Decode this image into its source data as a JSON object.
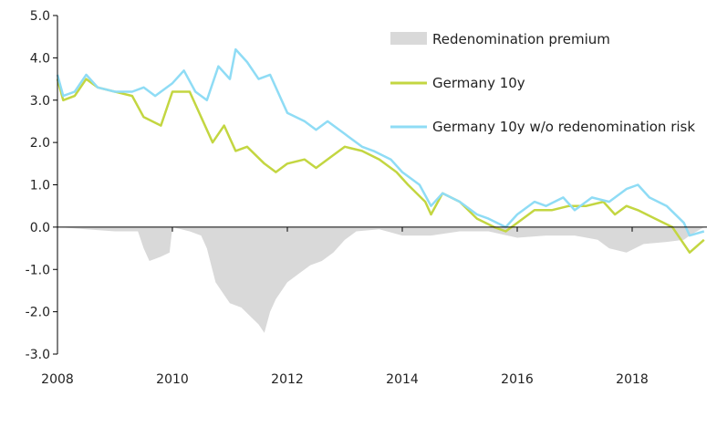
{
  "chart_data": {
    "type": "line",
    "title": "",
    "xlabel": "",
    "ylabel": "",
    "xlim": [
      2008,
      2019.3
    ],
    "ylim": [
      -3,
      5
    ],
    "x_ticks": [
      "2008",
      "2010",
      "2012",
      "2014",
      "2016",
      "2018"
    ],
    "y_ticks": [
      "5.0",
      "4.0",
      "3.0",
      "2.0",
      "1.0",
      "0.0",
      "-1.0",
      "-2.0",
      "-3.0"
    ],
    "grid": false,
    "legend_position": "top-right",
    "series": [
      {
        "name": "Redenomination premium",
        "kind": "area",
        "color": "#d9d9d9",
        "points": [
          [
            2008.0,
            0
          ],
          [
            2008.5,
            -0.05
          ],
          [
            2009.0,
            -0.1
          ],
          [
            2009.4,
            -0.1
          ],
          [
            2009.5,
            -0.5
          ],
          [
            2009.6,
            -0.8
          ],
          [
            2009.8,
            -0.7
          ],
          [
            2009.95,
            -0.6
          ],
          [
            2010.0,
            0
          ],
          [
            2010.3,
            -0.1
          ],
          [
            2010.5,
            -0.2
          ],
          [
            2010.6,
            -0.5
          ],
          [
            2010.75,
            -1.3
          ],
          [
            2010.9,
            -1.6
          ],
          [
            2011.0,
            -1.8
          ],
          [
            2011.2,
            -1.9
          ],
          [
            2011.35,
            -2.1
          ],
          [
            2011.5,
            -2.3
          ],
          [
            2011.6,
            -2.5
          ],
          [
            2011.7,
            -2.0
          ],
          [
            2011.8,
            -1.7
          ],
          [
            2012.0,
            -1.3
          ],
          [
            2012.2,
            -1.1
          ],
          [
            2012.4,
            -0.9
          ],
          [
            2012.6,
            -0.8
          ],
          [
            2012.8,
            -0.6
          ],
          [
            2013.0,
            -0.3
          ],
          [
            2013.2,
            -0.1
          ],
          [
            2013.6,
            -0.05
          ],
          [
            2014.0,
            -0.2
          ],
          [
            2014.5,
            -0.2
          ],
          [
            2015.0,
            -0.1
          ],
          [
            2015.5,
            -0.1
          ],
          [
            2016.0,
            -0.25
          ],
          [
            2016.5,
            -0.2
          ],
          [
            2017.0,
            -0.2
          ],
          [
            2017.4,
            -0.3
          ],
          [
            2017.6,
            -0.5
          ],
          [
            2017.9,
            -0.6
          ],
          [
            2018.2,
            -0.4
          ],
          [
            2018.6,
            -0.35
          ],
          [
            2018.9,
            -0.3
          ],
          [
            2019.0,
            -0.2
          ],
          [
            2019.25,
            0
          ]
        ]
      },
      {
        "name": "Germany 10y",
        "kind": "line",
        "color": "#c3d641",
        "points": [
          [
            2008.0,
            3.5
          ],
          [
            2008.1,
            3.0
          ],
          [
            2008.3,
            3.1
          ],
          [
            2008.5,
            3.5
          ],
          [
            2008.7,
            3.3
          ],
          [
            2009.0,
            3.2
          ],
          [
            2009.3,
            3.1
          ],
          [
            2009.5,
            2.6
          ],
          [
            2009.8,
            2.4
          ],
          [
            2010.0,
            3.2
          ],
          [
            2010.3,
            3.2
          ],
          [
            2010.5,
            2.6
          ],
          [
            2010.7,
            2.0
          ],
          [
            2010.9,
            2.4
          ],
          [
            2011.1,
            1.8
          ],
          [
            2011.3,
            1.9
          ],
          [
            2011.6,
            1.5
          ],
          [
            2011.8,
            1.3
          ],
          [
            2012.0,
            1.5
          ],
          [
            2012.3,
            1.6
          ],
          [
            2012.5,
            1.4
          ],
          [
            2012.8,
            1.7
          ],
          [
            2013.0,
            1.9
          ],
          [
            2013.3,
            1.8
          ],
          [
            2013.6,
            1.6
          ],
          [
            2013.9,
            1.3
          ],
          [
            2014.1,
            1.0
          ],
          [
            2014.4,
            0.6
          ],
          [
            2014.5,
            0.3
          ],
          [
            2014.7,
            0.8
          ],
          [
            2015.0,
            0.6
          ],
          [
            2015.3,
            0.2
          ],
          [
            2015.6,
            0.0
          ],
          [
            2015.8,
            -0.1
          ],
          [
            2016.0,
            0.1
          ],
          [
            2016.3,
            0.4
          ],
          [
            2016.6,
            0.4
          ],
          [
            2016.9,
            0.5
          ],
          [
            2017.2,
            0.5
          ],
          [
            2017.5,
            0.6
          ],
          [
            2017.7,
            0.3
          ],
          [
            2017.9,
            0.5
          ],
          [
            2018.1,
            0.4
          ],
          [
            2018.4,
            0.2
          ],
          [
            2018.7,
            0.0
          ],
          [
            2018.9,
            -0.4
          ],
          [
            2019.0,
            -0.6
          ],
          [
            2019.25,
            -0.3
          ]
        ]
      },
      {
        "name": "Germany 10y w/o redenomination risk",
        "kind": "line",
        "color": "#8fdcf5",
        "points": [
          [
            2008.0,
            3.6
          ],
          [
            2008.1,
            3.1
          ],
          [
            2008.3,
            3.2
          ],
          [
            2008.5,
            3.6
          ],
          [
            2008.7,
            3.3
          ],
          [
            2009.0,
            3.2
          ],
          [
            2009.3,
            3.2
          ],
          [
            2009.5,
            3.3
          ],
          [
            2009.7,
            3.1
          ],
          [
            2010.0,
            3.4
          ],
          [
            2010.2,
            3.7
          ],
          [
            2010.4,
            3.2
          ],
          [
            2010.6,
            3.0
          ],
          [
            2010.8,
            3.8
          ],
          [
            2011.0,
            3.5
          ],
          [
            2011.1,
            4.2
          ],
          [
            2011.3,
            3.9
          ],
          [
            2011.5,
            3.5
          ],
          [
            2011.7,
            3.6
          ],
          [
            2011.9,
            3.0
          ],
          [
            2012.0,
            2.7
          ],
          [
            2012.3,
            2.5
          ],
          [
            2012.5,
            2.3
          ],
          [
            2012.7,
            2.5
          ],
          [
            2013.0,
            2.2
          ],
          [
            2013.3,
            1.9
          ],
          [
            2013.5,
            1.8
          ],
          [
            2013.8,
            1.6
          ],
          [
            2014.0,
            1.3
          ],
          [
            2014.3,
            1.0
          ],
          [
            2014.5,
            0.5
          ],
          [
            2014.7,
            0.8
          ],
          [
            2015.0,
            0.6
          ],
          [
            2015.3,
            0.3
          ],
          [
            2015.5,
            0.2
          ],
          [
            2015.8,
            0.0
          ],
          [
            2016.0,
            0.3
          ],
          [
            2016.3,
            0.6
          ],
          [
            2016.5,
            0.5
          ],
          [
            2016.8,
            0.7
          ],
          [
            2017.0,
            0.4
          ],
          [
            2017.3,
            0.7
          ],
          [
            2017.6,
            0.6
          ],
          [
            2017.9,
            0.9
          ],
          [
            2018.1,
            1.0
          ],
          [
            2018.3,
            0.7
          ],
          [
            2018.6,
            0.5
          ],
          [
            2018.9,
            0.1
          ],
          [
            2019.0,
            -0.2
          ],
          [
            2019.25,
            -0.1
          ]
        ]
      }
    ]
  }
}
